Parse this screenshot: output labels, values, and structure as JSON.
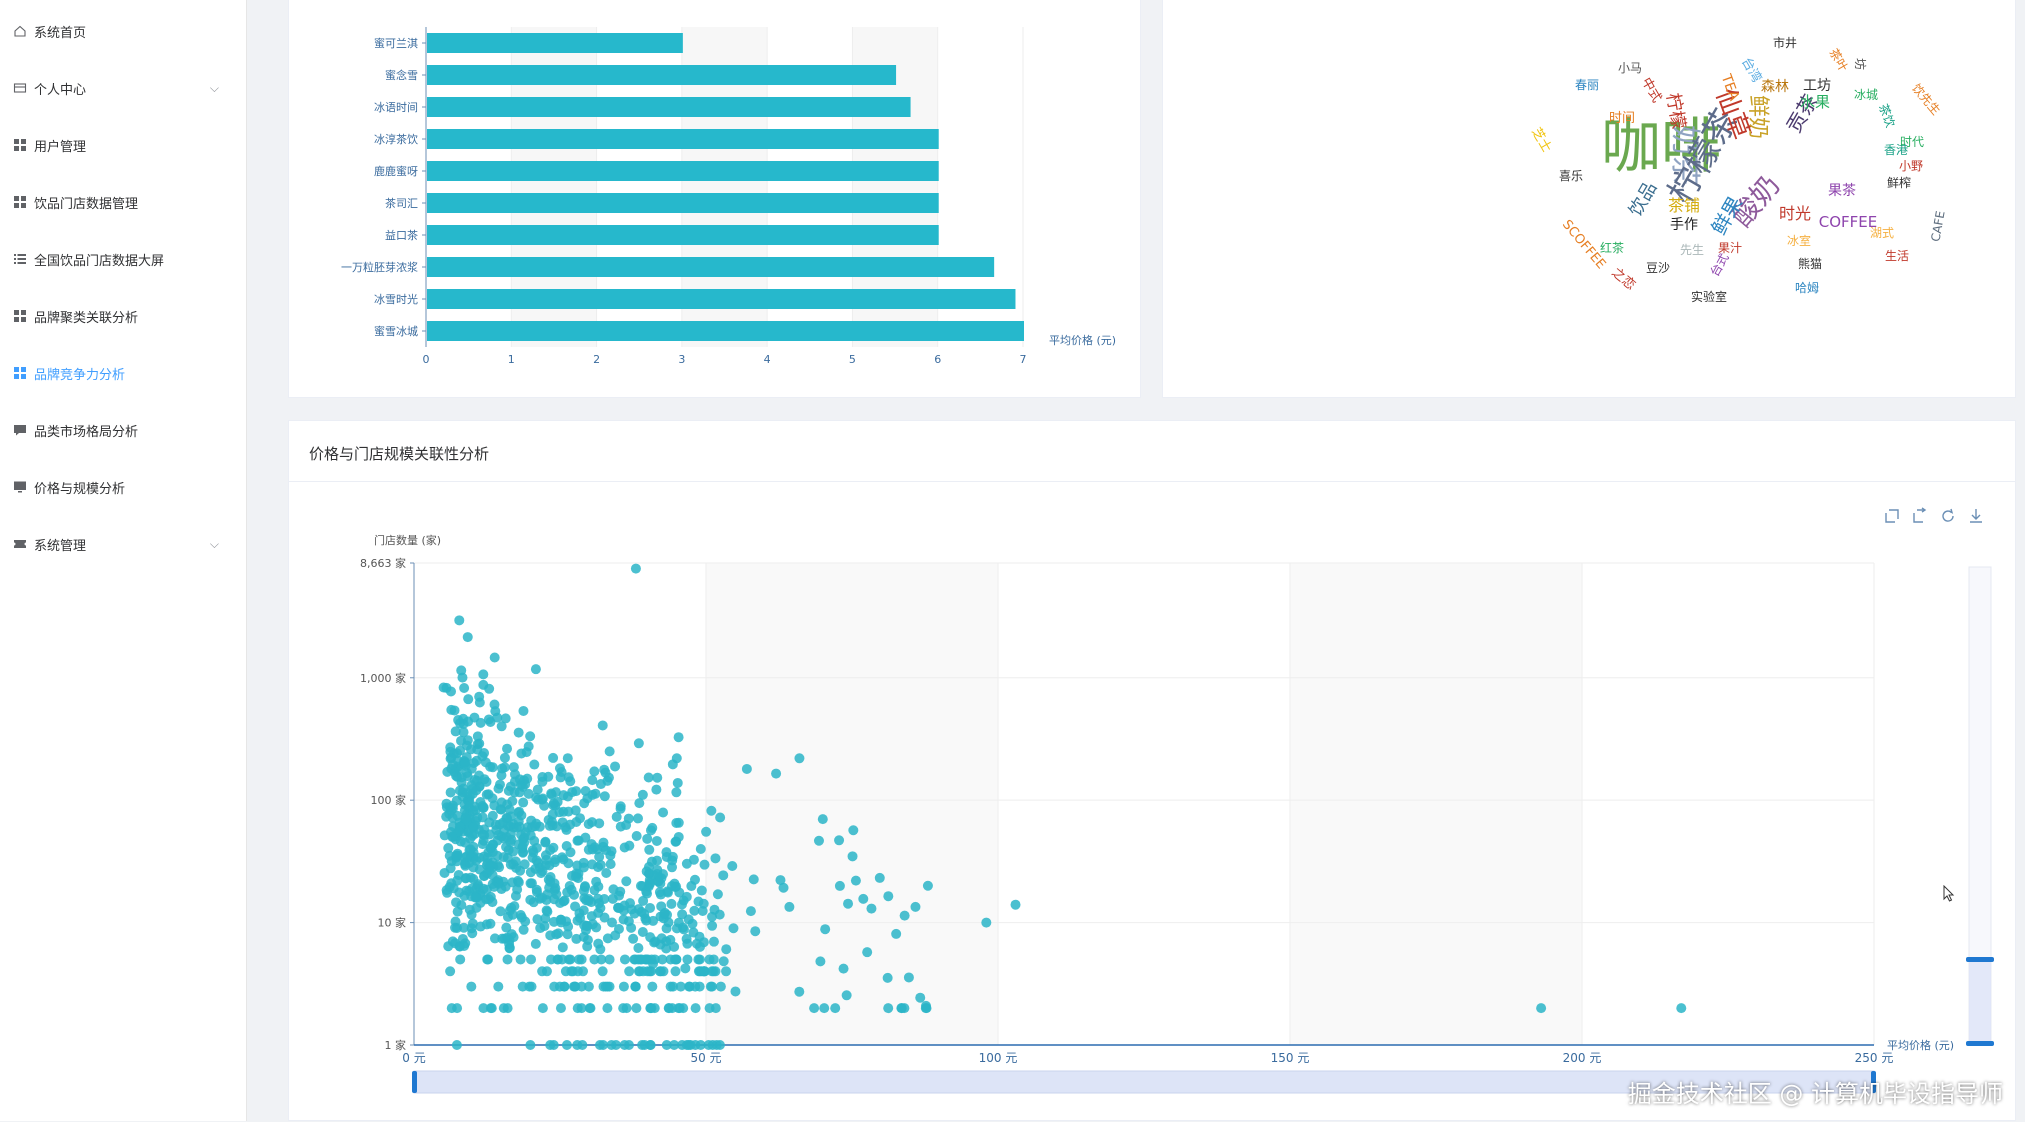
{
  "sidebar": {
    "items": [
      {
        "label": "系统首页",
        "icon": "home-icon",
        "has_chevron": false
      },
      {
        "label": "个人中心",
        "icon": "card-icon",
        "has_chevron": true
      },
      {
        "label": "用户管理",
        "icon": "grid-icon",
        "has_chevron": false
      },
      {
        "label": "饮品门店数据管理",
        "icon": "grid-icon",
        "has_chevron": false
      },
      {
        "label": "全国饮品门店数据大屏",
        "icon": "list-icon",
        "has_chevron": false
      },
      {
        "label": "品牌聚类关联分析",
        "icon": "grid-icon",
        "has_chevron": false
      },
      {
        "label": "品牌竞争力分析",
        "icon": "grid-icon",
        "has_chevron": false,
        "active": true
      },
      {
        "label": "品类市场格局分析",
        "icon": "chat-icon",
        "has_chevron": false
      },
      {
        "label": "价格与规模分析",
        "icon": "monitor-icon",
        "has_chevron": false
      },
      {
        "label": "系统管理",
        "icon": "ticket-icon",
        "has_chevron": true
      }
    ]
  },
  "colors": {
    "accent": "#409eff",
    "bar": "#26b8cc",
    "scatter": "#2bb5c8",
    "axis_text": "#3a6b9e"
  },
  "bar_panel": {
    "chart_data": {
      "type": "bar",
      "orientation": "horizontal",
      "categories": [
        "蜜可兰淇",
        "蜜念雪",
        "冰语时间",
        "冰淳茶饮",
        "鹿鹿蜜呀",
        "茶司汇",
        "益口茶",
        "一万粒胚芽浓浆",
        "冰雪时光",
        "蜜雪冰城"
      ],
      "values": [
        3.0,
        5.5,
        5.67,
        6.0,
        6.0,
        6.0,
        6.0,
        6.65,
        6.9,
        7.0
      ],
      "xlabel": "平均价格 (元)",
      "xlim": [
        0,
        7
      ],
      "xticks": [
        "0",
        "1",
        "2",
        "3",
        "4",
        "5",
        "6",
        "7"
      ],
      "grid": true
    }
  },
  "cloud_panel": {
    "words": [
      {
        "t": "咖啡",
        "c": "#6aa84f"
      },
      {
        "t": "奶茶",
        "c": "#8fa3c2"
      },
      {
        "t": "柠檬茶",
        "c": "#5d6c8a"
      },
      {
        "t": "仙草",
        "c": "#c0392b"
      },
      {
        "t": "酸奶",
        "c": "#8e5a9b"
      },
      {
        "t": "鲜奶",
        "c": "#c9a227"
      },
      {
        "t": "贡茶",
        "c": "#4b3a6e"
      },
      {
        "t": "COFFEE",
        "c": "#8e44ad"
      },
      {
        "t": "饮品",
        "c": "#3b6e8f"
      },
      {
        "t": "柠檬",
        "c": "#c0392b"
      },
      {
        "t": "鲜果",
        "c": "#2e86c1"
      },
      {
        "t": "时光",
        "c": "#c0392b"
      },
      {
        "t": "手作",
        "c": "#222222"
      },
      {
        "t": "茶铺",
        "c": "#d4ac0d"
      },
      {
        "t": "水果",
        "c": "#27ae60"
      },
      {
        "t": "工坊",
        "c": "#333333"
      },
      {
        "t": "森林",
        "c": "#b9770e"
      },
      {
        "t": "TEA",
        "c": "#e67e22"
      },
      {
        "t": "台湾",
        "c": "#5dade2"
      },
      {
        "t": "小马",
        "c": "#555555"
      },
      {
        "t": "春丽",
        "c": "#2e86c1"
      },
      {
        "t": "时间",
        "c": "#e67e22"
      },
      {
        "t": "喜乐",
        "c": "#333333"
      },
      {
        "t": "果汁",
        "c": "#c0392b"
      },
      {
        "t": "先生",
        "c": "#aab7b8"
      },
      {
        "t": "豆沙",
        "c": "#333333"
      },
      {
        "t": "红茶",
        "c": "#27ae60"
      },
      {
        "t": "台式",
        "c": "#8e44ad"
      },
      {
        "t": "熊猫",
        "c": "#333333"
      },
      {
        "t": "冰室",
        "c": "#f5b041"
      },
      {
        "t": "湖式",
        "c": "#f5b041"
      },
      {
        "t": "生活",
        "c": "#c0392b"
      },
      {
        "t": "鲜榨",
        "c": "#333333"
      },
      {
        "t": "小野",
        "c": "#c0392b"
      },
      {
        "t": "香港",
        "c": "#16a085"
      },
      {
        "t": "时代",
        "c": "#27ae60"
      },
      {
        "t": "实验室",
        "c": "#333333"
      },
      {
        "t": "哈姆",
        "c": "#2e86c1"
      },
      {
        "t": "CAFE",
        "c": "#5d6d7e"
      },
      {
        "t": "SCOFFEE",
        "c": "#e67e22"
      },
      {
        "t": "之恋",
        "c": "#c0392b"
      },
      {
        "t": "市井",
        "c": "#333333"
      },
      {
        "t": "冰城",
        "c": "#27ae60"
      },
      {
        "t": "饮先生",
        "c": "#e67e22"
      },
      {
        "t": "中式",
        "c": "#c0392b"
      },
      {
        "t": "茶饮",
        "c": "#16a085"
      },
      {
        "t": "坊",
        "c": "#555555"
      },
      {
        "t": "茶叶",
        "c": "#e67e22"
      },
      {
        "t": "果茶",
        "c": "#8e44ad"
      },
      {
        "t": "芝士",
        "c": "#f1c40f"
      }
    ]
  },
  "scatter_panel": {
    "title": "价格与门店规模关联性分析",
    "toolbox": [
      "zoom-icon",
      "zoom-reset-icon",
      "restore-icon",
      "download-icon"
    ],
    "chart_data": {
      "type": "scatter",
      "xlabel": "平均价格 (元)",
      "ylabel": "门店数量 (家)",
      "xlim": [
        0,
        250
      ],
      "ylim": [
        1,
        8663
      ],
      "yscale": "log",
      "xticks": [
        "0 元",
        "50 元",
        "100 元",
        "150 元",
        "200 元",
        "250 元"
      ],
      "yticks": [
        "1 家",
        "10 家",
        "100 家",
        "1,000 家",
        "8,663 家"
      ],
      "outliers": [
        [
          38,
          7800
        ],
        [
          45,
          220
        ],
        [
          57,
          180
        ],
        [
          62,
          165
        ],
        [
          66,
          220
        ],
        [
          70,
          70
        ],
        [
          88,
          20
        ],
        [
          98,
          10
        ],
        [
          103,
          14
        ],
        [
          193,
          2
        ],
        [
          217,
          2
        ]
      ],
      "datazoom": {
        "x_start": 0,
        "x_end": 100,
        "y_start": 0,
        "y_end": 18
      }
    }
  },
  "watermark": "掘金技术社区 @ 计算机毕设指导师"
}
